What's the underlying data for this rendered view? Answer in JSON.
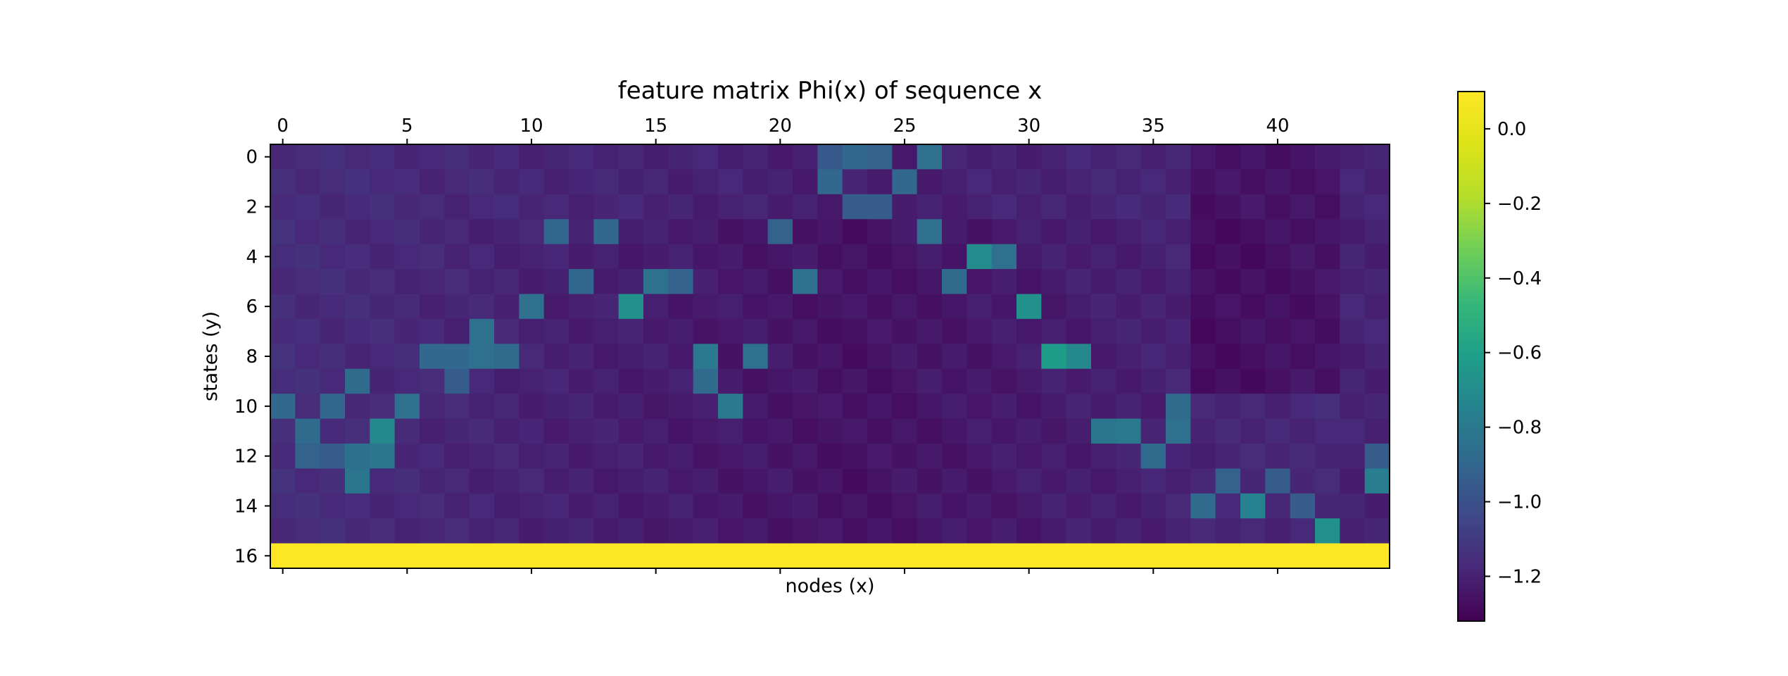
{
  "chart_data": {
    "type": "heatmap",
    "title": "feature matrix Phi(x) of sequence x",
    "xlabel": "nodes (x)",
    "ylabel": "states (y)",
    "n_cols": 45,
    "n_rows": 17,
    "x_ticks": [
      0,
      5,
      10,
      15,
      20,
      25,
      30,
      35,
      40
    ],
    "y_ticks": [
      0,
      2,
      4,
      6,
      8,
      10,
      12,
      14,
      16
    ],
    "colorbar": {
      "min": -1.32,
      "max": 0.1,
      "ticks": [
        0.0,
        -0.2,
        -0.4,
        -0.6,
        -0.8,
        -1.0,
        -1.2
      ],
      "tick_labels": [
        "0.0",
        "−0.2",
        "−0.4",
        "−0.6",
        "−0.8",
        "−1.0",
        "−1.2"
      ]
    },
    "colormap": "viridis",
    "last_row_value": 0.1,
    "baseline_value": -1.16,
    "high_cells": [
      [
        10,
        0,
        -0.9
      ],
      [
        11,
        1,
        -0.88
      ],
      [
        12,
        1,
        -0.92
      ],
      [
        12,
        2,
        -0.95
      ],
      [
        10,
        2,
        -0.9
      ],
      [
        9,
        3,
        -0.88
      ],
      [
        12,
        3,
        -0.86
      ],
      [
        13,
        3,
        -0.82
      ],
      [
        11,
        4,
        -0.72
      ],
      [
        12,
        4,
        -0.82
      ],
      [
        10,
        5,
        -0.85
      ],
      [
        8,
        6,
        -0.9
      ],
      [
        9,
        7,
        -0.95
      ],
      [
        8,
        7,
        -0.9
      ],
      [
        7,
        8,
        -0.85
      ],
      [
        8,
        8,
        -0.85
      ],
      [
        8,
        9,
        -0.88
      ],
      [
        6,
        10,
        -0.85
      ],
      [
        3,
        11,
        -0.9
      ],
      [
        5,
        12,
        -0.9
      ],
      [
        3,
        13,
        -0.9
      ],
      [
        6,
        14,
        -0.68
      ],
      [
        5,
        15,
        -0.85
      ],
      [
        5,
        16,
        -0.92
      ],
      [
        8,
        17,
        -0.8
      ],
      [
        9,
        17,
        -0.88
      ],
      [
        10,
        18,
        -0.8
      ],
      [
        8,
        19,
        -0.85
      ],
      [
        3,
        20,
        -0.92
      ],
      [
        5,
        21,
        -0.85
      ],
      [
        1,
        22,
        -0.9
      ],
      [
        0,
        22,
        -0.97
      ],
      [
        2,
        23,
        -0.95
      ],
      [
        0,
        23,
        -0.9
      ],
      [
        2,
        24,
        -0.95
      ],
      [
        0,
        24,
        -0.92
      ],
      [
        1,
        25,
        -0.9
      ],
      [
        0,
        26,
        -0.85
      ],
      [
        3,
        26,
        -0.85
      ],
      [
        5,
        27,
        -0.88
      ],
      [
        4,
        28,
        -0.7
      ],
      [
        4,
        29,
        -0.85
      ],
      [
        6,
        30,
        -0.68
      ],
      [
        8,
        31,
        -0.62
      ],
      [
        8,
        32,
        -0.72
      ],
      [
        11,
        33,
        -0.82
      ],
      [
        11,
        34,
        -0.8
      ],
      [
        12,
        35,
        -0.88
      ],
      [
        10,
        36,
        -0.88
      ],
      [
        11,
        36,
        -0.85
      ],
      [
        14,
        37,
        -0.88
      ],
      [
        13,
        38,
        -0.92
      ],
      [
        14,
        39,
        -0.75
      ],
      [
        13,
        40,
        -0.95
      ],
      [
        14,
        41,
        -0.95
      ],
      [
        15,
        42,
        -0.68
      ],
      [
        13,
        44,
        -0.78
      ],
      [
        12,
        44,
        -0.95
      ]
    ]
  }
}
